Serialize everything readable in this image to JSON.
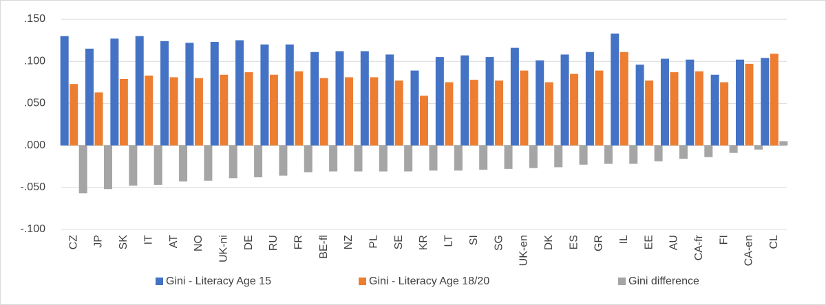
{
  "chart_data": {
    "type": "bar",
    "categories": [
      "CZ",
      "JP",
      "SK",
      "IT",
      "AT",
      "NO",
      "UK-ni",
      "DE",
      "RU",
      "FR",
      "BE-fl",
      "NZ",
      "PL",
      "SE",
      "KR",
      "LT",
      "SI",
      "SG",
      "UK-en",
      "DK",
      "ES",
      "GR",
      "IL",
      "EE",
      "AU",
      "CA-fr",
      "FI",
      "CA-en",
      "CL"
    ],
    "series": [
      {
        "name": "Gini - Literacy Age 15",
        "color": "#4472c4",
        "values": [
          0.13,
          0.115,
          0.127,
          0.13,
          0.124,
          0.122,
          0.123,
          0.125,
          0.12,
          0.12,
          0.111,
          0.112,
          0.112,
          0.108,
          0.089,
          0.105,
          0.107,
          0.105,
          0.116,
          0.101,
          0.108,
          0.111,
          0.133,
          0.096,
          0.103,
          0.102,
          0.084,
          0.102,
          0.104
        ]
      },
      {
        "name": "Gini - Literacy Age 18/20",
        "color": "#ed7d31",
        "values": [
          0.073,
          0.063,
          0.079,
          0.083,
          0.081,
          0.08,
          0.084,
          0.087,
          0.084,
          0.088,
          0.08,
          0.081,
          0.081,
          0.077,
          0.059,
          0.075,
          0.078,
          0.077,
          0.089,
          0.075,
          0.085,
          0.089,
          0.111,
          0.077,
          0.087,
          0.088,
          0.075,
          0.097,
          0.109
        ]
      },
      {
        "name": "Gini difference",
        "color": "#a5a5a5",
        "values": [
          -0.057,
          -0.052,
          -0.048,
          -0.047,
          -0.043,
          -0.042,
          -0.039,
          -0.038,
          -0.036,
          -0.032,
          -0.031,
          -0.031,
          -0.031,
          -0.031,
          -0.03,
          -0.03,
          -0.029,
          -0.028,
          -0.027,
          -0.026,
          -0.023,
          -0.022,
          -0.022,
          -0.019,
          -0.016,
          -0.014,
          -0.009,
          -0.005,
          0.005
        ]
      }
    ],
    "ylim": [
      -0.1,
      0.15
    ],
    "yticks": [
      {
        "value": -0.1,
        "label": "-.100"
      },
      {
        "value": -0.05,
        "label": "-.050"
      },
      {
        "value": 0,
        "label": ".000"
      },
      {
        "value": 0.05,
        "label": ".050"
      },
      {
        "value": 0.1,
        "label": ".100"
      },
      {
        "value": 0.15,
        "label": ".150"
      }
    ],
    "grid": true,
    "legend": "bottom"
  }
}
